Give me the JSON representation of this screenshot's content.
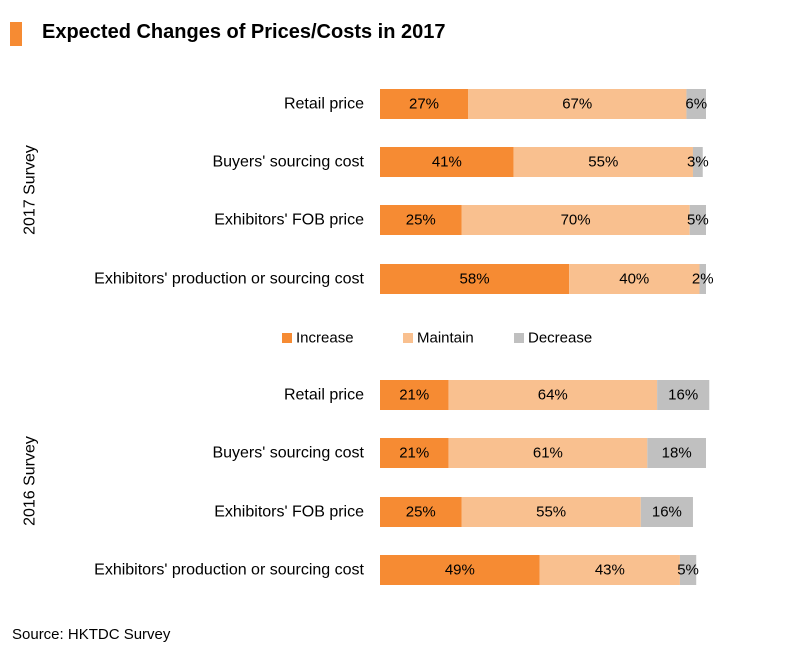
{
  "title": "Expected Changes of Prices/Costs in 2017",
  "source": "Source: HKTDC Survey",
  "colors": {
    "increase": "#f68b33",
    "maintain": "#f9c08f",
    "decrease": "#c0c0c0"
  },
  "chart_data": {
    "type": "bar",
    "orientation": "horizontal",
    "stacked": true,
    "xlim": [
      0,
      100
    ],
    "grid": false,
    "legend_placement": "between groups",
    "legend": [
      "Increase",
      "Maintain",
      "Decrease"
    ],
    "groups": [
      {
        "label": "2017 Survey",
        "categories": [
          "Retail price",
          "Buyers' sourcing cost",
          "Exhibitors' FOB price",
          "Exhibitors' production or sourcing cost"
        ],
        "series": [
          {
            "name": "Increase",
            "values": [
              27,
              41,
              25,
              58
            ]
          },
          {
            "name": "Maintain",
            "values": [
              67,
              55,
              70,
              40
            ]
          },
          {
            "name": "Decrease",
            "values": [
              6,
              3,
              5,
              2
            ]
          }
        ]
      },
      {
        "label": "2016 Survey",
        "categories": [
          "Retail price",
          "Buyers' sourcing cost",
          "Exhibitors' FOB price",
          "Exhibitors' production or sourcing cost"
        ],
        "series": [
          {
            "name": "Increase",
            "values": [
              21,
              21,
              25,
              49
            ]
          },
          {
            "name": "Maintain",
            "values": [
              64,
              61,
              55,
              43
            ]
          },
          {
            "name": "Decrease",
            "values": [
              16,
              18,
              16,
              5
            ]
          }
        ]
      }
    ]
  }
}
